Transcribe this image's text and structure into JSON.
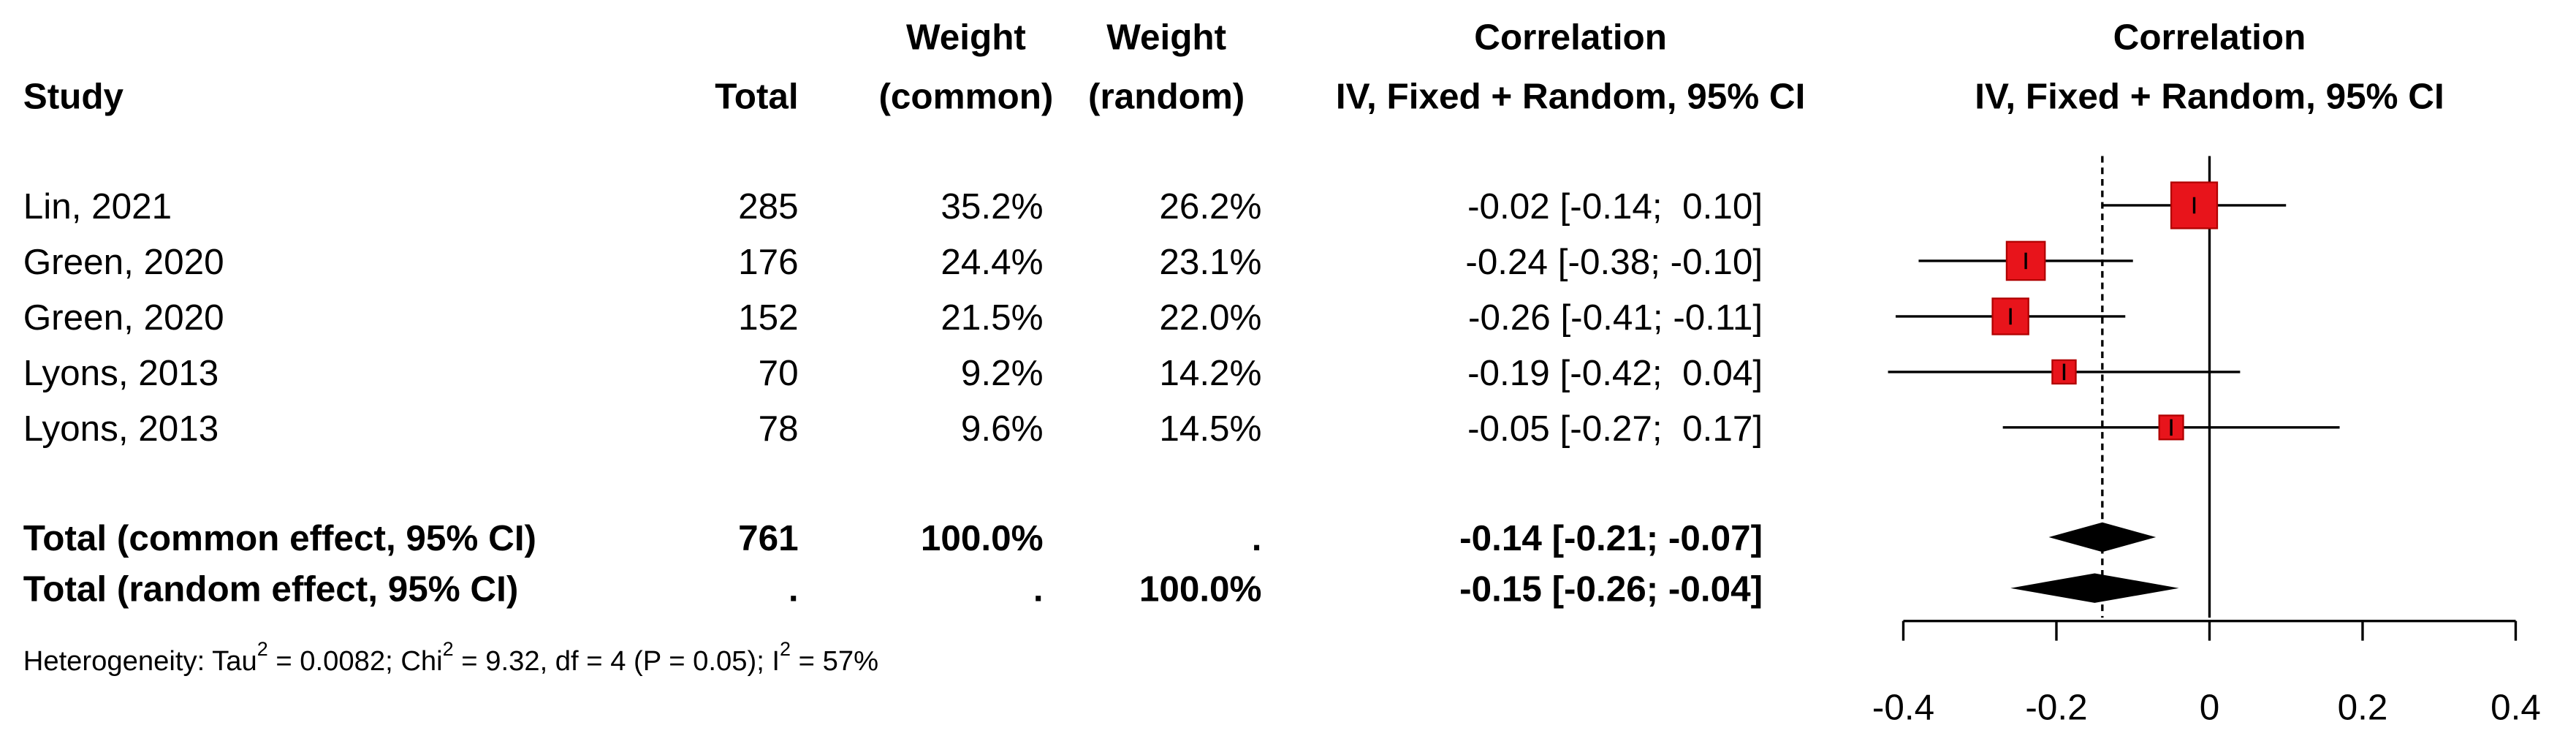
{
  "chart_data": {
    "type": "forest",
    "headers": {
      "study": "Study",
      "total": "Total",
      "weight_common": [
        "Weight",
        "(common)"
      ],
      "weight_random": [
        "Weight",
        "(random)"
      ],
      "ci": [
        "Correlation",
        "IV, Fixed + Random, 95% CI"
      ],
      "plot": [
        "Correlation",
        "IV, Fixed + Random, 95% CI"
      ]
    },
    "studies": [
      {
        "study": "Lin, 2021",
        "total": 285,
        "weight_common": 35.2,
        "weight_common_label": "35.2%",
        "weight_random_label": "26.2%",
        "ci_label": "-0.02 [-0.14;  0.10]",
        "estimate": -0.02,
        "lower": -0.14,
        "upper": 0.1
      },
      {
        "study": "Green, 2020",
        "total": 176,
        "weight_common": 24.4,
        "weight_common_label": "24.4%",
        "weight_random_label": "23.1%",
        "ci_label": "-0.24 [-0.38; -0.10]",
        "estimate": -0.24,
        "lower": -0.38,
        "upper": -0.1
      },
      {
        "study": "Green, 2020",
        "total": 152,
        "weight_common": 21.5,
        "weight_common_label": "21.5%",
        "weight_random_label": "22.0%",
        "ci_label": "-0.26 [-0.41; -0.11]",
        "estimate": -0.26,
        "lower": -0.41,
        "upper": -0.11
      },
      {
        "study": "Lyons, 2013",
        "total": 70,
        "weight_common": 9.2,
        "weight_common_label": "9.2%",
        "weight_random_label": "14.2%",
        "ci_label": "-0.19 [-0.42;  0.04]",
        "estimate": -0.19,
        "lower": -0.42,
        "upper": 0.04
      },
      {
        "study": "Lyons, 2013",
        "total": 78,
        "weight_common": 9.6,
        "weight_common_label": "9.6%",
        "weight_random_label": "14.5%",
        "ci_label": "-0.05 [-0.27;  0.17]",
        "estimate": -0.05,
        "lower": -0.27,
        "upper": 0.17
      }
    ],
    "totals": [
      {
        "study": "Total (common effect, 95% CI)",
        "total": 761,
        "weight_common_label": "100.0%",
        "weight_random_label": ".",
        "ci_label": "-0.14 [-0.21; -0.07]",
        "estimate": -0.14,
        "lower": -0.21,
        "upper": -0.07
      },
      {
        "study": "Total (random effect, 95% CI)",
        "total": ".",
        "weight_common_label": ".",
        "weight_random_label": "100.0%",
        "ci_label": "-0.15 [-0.26; -0.04]",
        "estimate": -0.15,
        "lower": -0.26,
        "upper": -0.04
      }
    ],
    "heterogeneity": [
      "Heterogeneity: Tau",
      "2",
      " = 0.0082; Chi",
      "2",
      " = 9.32, df = 4 (P = 0.05); I",
      "2",
      " = 57%"
    ],
    "xlim": [
      -0.4,
      0.4
    ],
    "xticks": [
      -0.4,
      -0.2,
      0,
      0.2,
      0.4
    ],
    "reference_line": 0,
    "box_color": "#e8141b",
    "box_border": "#b00000",
    "diamond_color": "#000000"
  }
}
